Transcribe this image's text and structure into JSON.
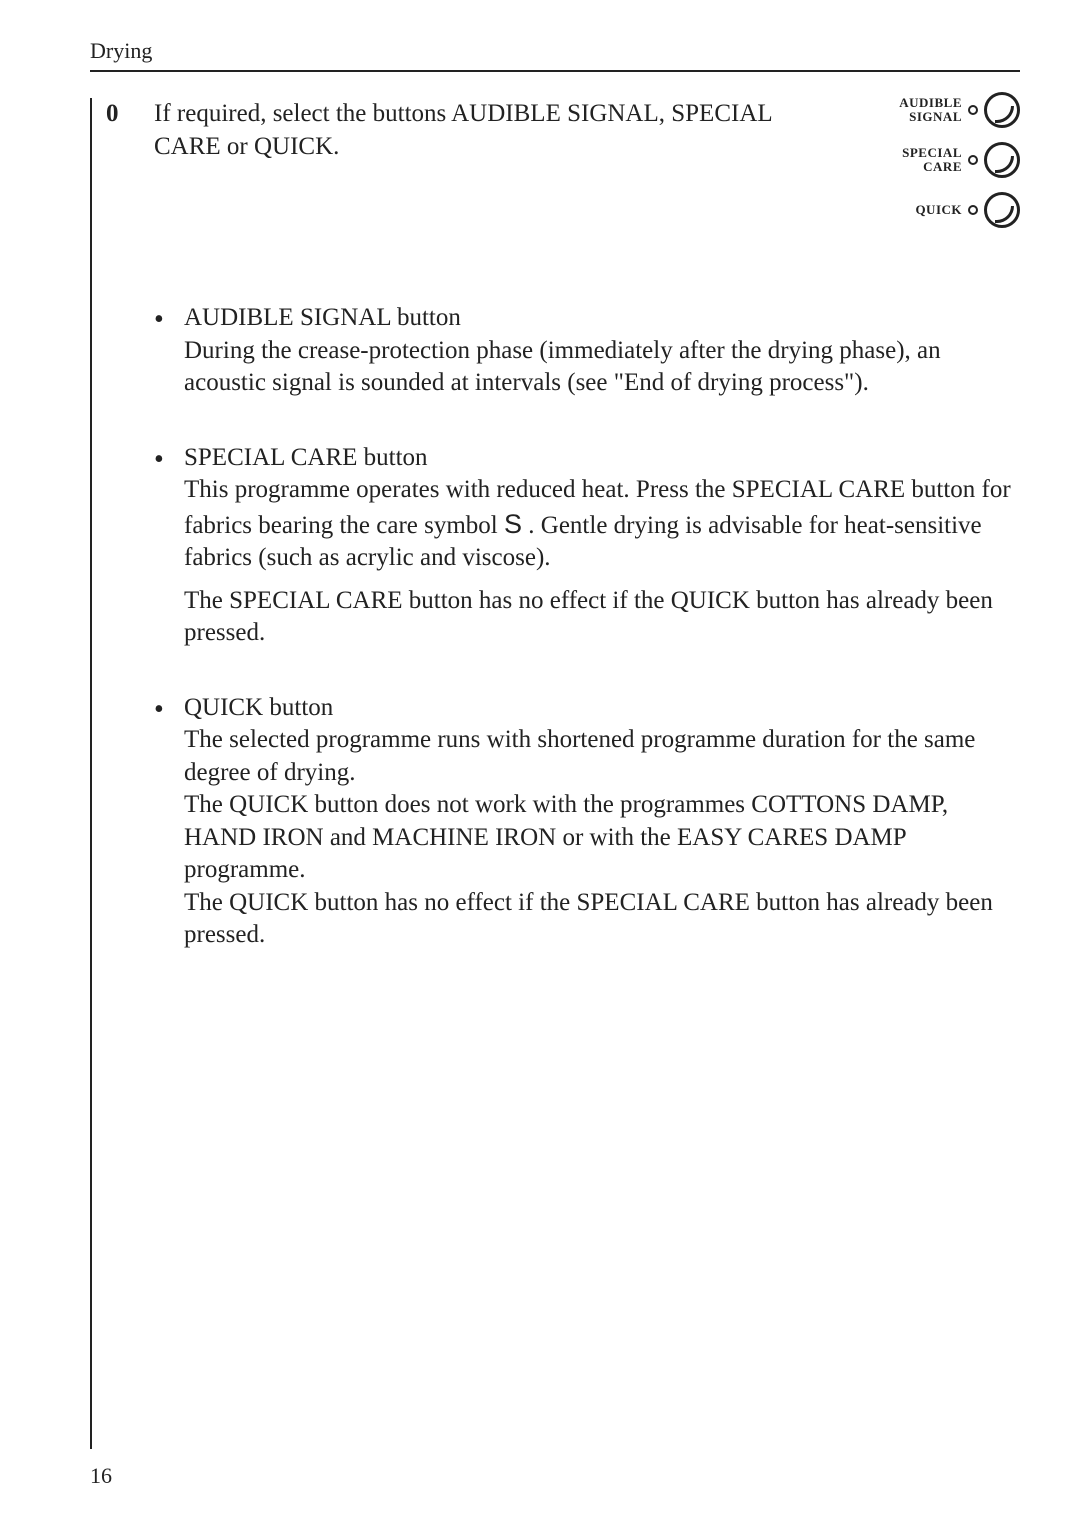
{
  "header": {
    "section_title": "Drying"
  },
  "intro": {
    "step_number": "0",
    "text": "If required, select the buttons AUDIBLE SIGNAL, SPECIAL CARE or QUICK."
  },
  "panel": {
    "rows": [
      {
        "label": "AUDIBLE\nSIGNAL"
      },
      {
        "label": "SPECIAL\nCARE"
      },
      {
        "label": "QUICK"
      }
    ]
  },
  "items": [
    {
      "title": "AUDIBLE SIGNAL button",
      "paras": [
        "During the crease-protection phase (immediately after the drying phase), an acoustic signal is sounded at intervals (see \"End of drying process\")."
      ]
    },
    {
      "title": "SPECIAL CARE button",
      "paras": [
        "This programme operates with reduced heat. Press the SPECIAL CARE button for fabrics bearing the care symbol  S . Gentle drying is advisable for heat-sensitive fabrics (such as acrylic and viscose).",
        "The SPECIAL CARE button has no effect if the QUICK button has already been pressed."
      ]
    },
    {
      "title": "QUICK button",
      "paras": [
        "The selected programme runs with shortened programme duration for the same degree of drying.",
        "The QUICK button does not work with the programmes COTTONS DAMP, HAND IRON and MACHINE IRON or with the  EASY CARES DAMP programme.",
        "The QUICK button has no effect if the SPECIAL CARE button has already been pressed."
      ]
    }
  ],
  "page_number": "16",
  "colors": {
    "text": "#222222",
    "bg": "#ffffff"
  }
}
